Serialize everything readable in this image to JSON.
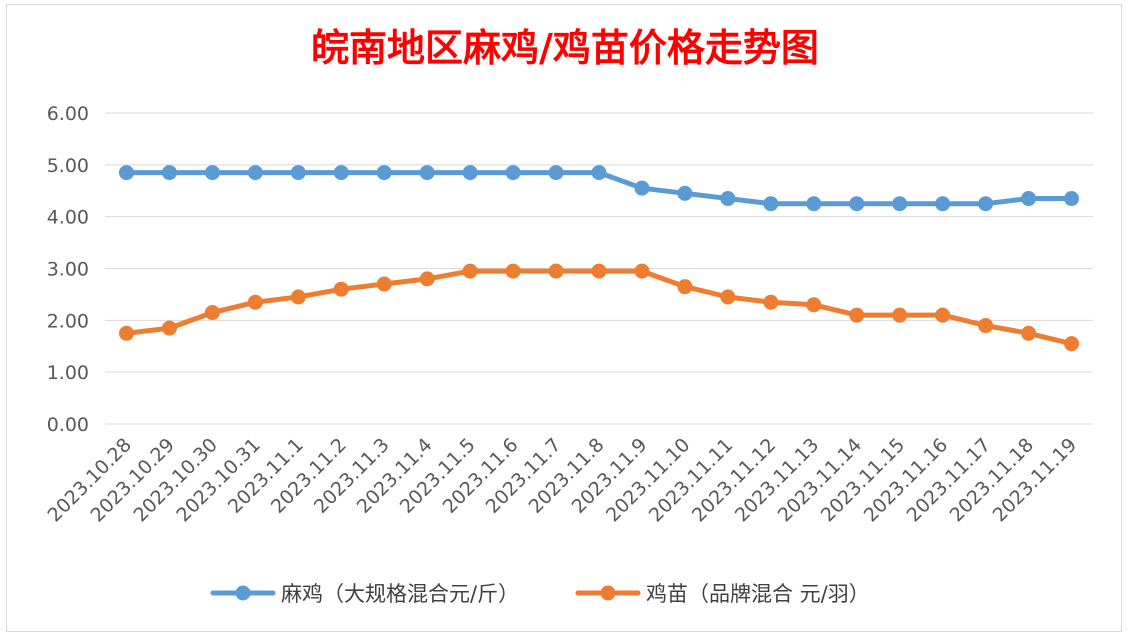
{
  "chart_data": {
    "type": "line",
    "title": "皖南地区麻鸡/鸡苗价格走势图",
    "xlabel": "",
    "ylabel": "",
    "categories": [
      "2023.10.28",
      "2023.10.29",
      "2023.10.30",
      "2023.10.31",
      "2023.11.1",
      "2023.11.2",
      "2023.11.3",
      "2023.11.4",
      "2023.11.5",
      "2023.11.6",
      "2023.11.7",
      "2023.11.8",
      "2023.11.9",
      "2023.11.10",
      "2023.11.11",
      "2023.11.12",
      "2023.11.13",
      "2023.11.14",
      "2023.11.15",
      "2023.11.16",
      "2023.11.17",
      "2023.11.18",
      "2023.11.19"
    ],
    "series": [
      {
        "name": "麻鸡（大规格混合元/斤）",
        "color": "#5b9bd5",
        "values": [
          4.85,
          4.85,
          4.85,
          4.85,
          4.85,
          4.85,
          4.85,
          4.85,
          4.85,
          4.85,
          4.85,
          4.85,
          4.55,
          4.45,
          4.35,
          4.25,
          4.25,
          4.25,
          4.25,
          4.25,
          4.25,
          4.35,
          4.35
        ]
      },
      {
        "name": "鸡苗（品牌混合 元/羽）",
        "color": "#ed7d31",
        "values": [
          1.75,
          1.85,
          2.15,
          2.35,
          2.45,
          2.6,
          2.7,
          2.8,
          2.95,
          2.95,
          2.95,
          2.95,
          2.95,
          2.65,
          2.45,
          2.35,
          2.3,
          2.1,
          2.1,
          2.1,
          1.9,
          1.75,
          1.55
        ]
      }
    ],
    "ylim": [
      0,
      6
    ],
    "yticks": [
      "0.00",
      "1.00",
      "2.00",
      "3.00",
      "4.00",
      "5.00",
      "6.00"
    ],
    "grid": true,
    "legend_position": "bottom"
  }
}
